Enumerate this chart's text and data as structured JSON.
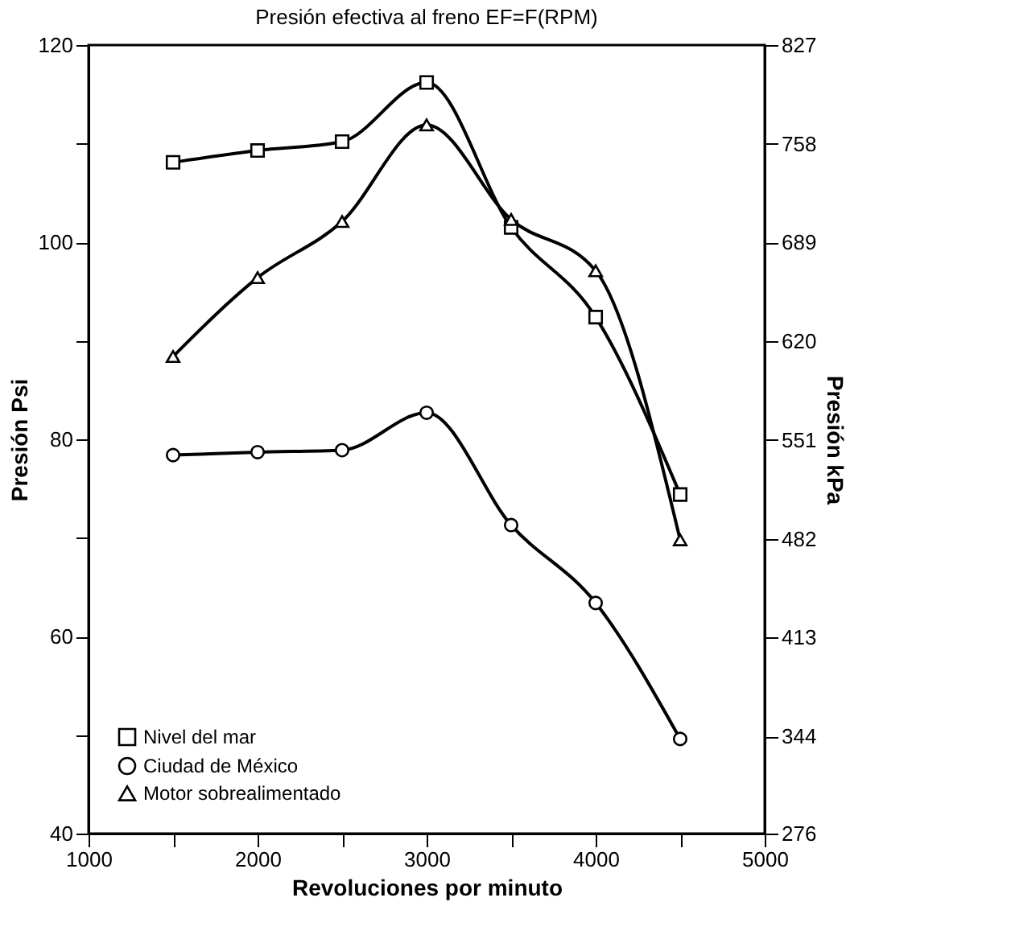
{
  "chart_data": {
    "type": "line",
    "title": "Presión efectiva al freno EF=F(RPM)",
    "xlabel": "Revoluciones por minuto",
    "ylabel": "Presión Psi",
    "y2label": "Presión kPa",
    "x": [
      1500,
      2000,
      2500,
      3000,
      3500,
      4000,
      4500
    ],
    "series": [
      {
        "name": "Nivel del mar",
        "color": "#000000",
        "marker": "square",
        "values": [
          108.1,
          109.3,
          110.2,
          116.2,
          101.5,
          92.4,
          74.4
        ]
      },
      {
        "name": "Ciudad de México",
        "color": "#000000",
        "marker": "circle",
        "values": [
          78.4,
          78.7,
          78.9,
          82.7,
          71.3,
          63.4,
          49.6
        ]
      },
      {
        "name": "Motor sobrealimentado",
        "color": "#000000",
        "marker": "triangle",
        "values": [
          88.4,
          96.4,
          102.1,
          111.9,
          102.3,
          97.1,
          69.8
        ]
      }
    ],
    "xlim": [
      1000,
      5000
    ],
    "xticks": [
      1000,
      {
        "value": 1500,
        "label": null
      },
      2000,
      {
        "value": 2500,
        "label": null
      },
      3000,
      {
        "value": 3500,
        "label": null
      },
      4000,
      {
        "value": 4500,
        "label": null
      },
      5000
    ],
    "ylim": [
      40,
      120
    ],
    "yticks": [
      40,
      {
        "value": 50,
        "label": null
      },
      60,
      {
        "value": 70,
        "label": null
      },
      80,
      {
        "value": 90,
        "label": null
      },
      100,
      {
        "value": 110,
        "label": null
      },
      120
    ],
    "y2lim": [
      276,
      827
    ],
    "y2ticks": [
      276,
      344,
      413,
      482,
      551,
      620,
      689,
      758,
      827
    ],
    "grid": false,
    "legend": "bottom left",
    "line_style": "solid"
  }
}
